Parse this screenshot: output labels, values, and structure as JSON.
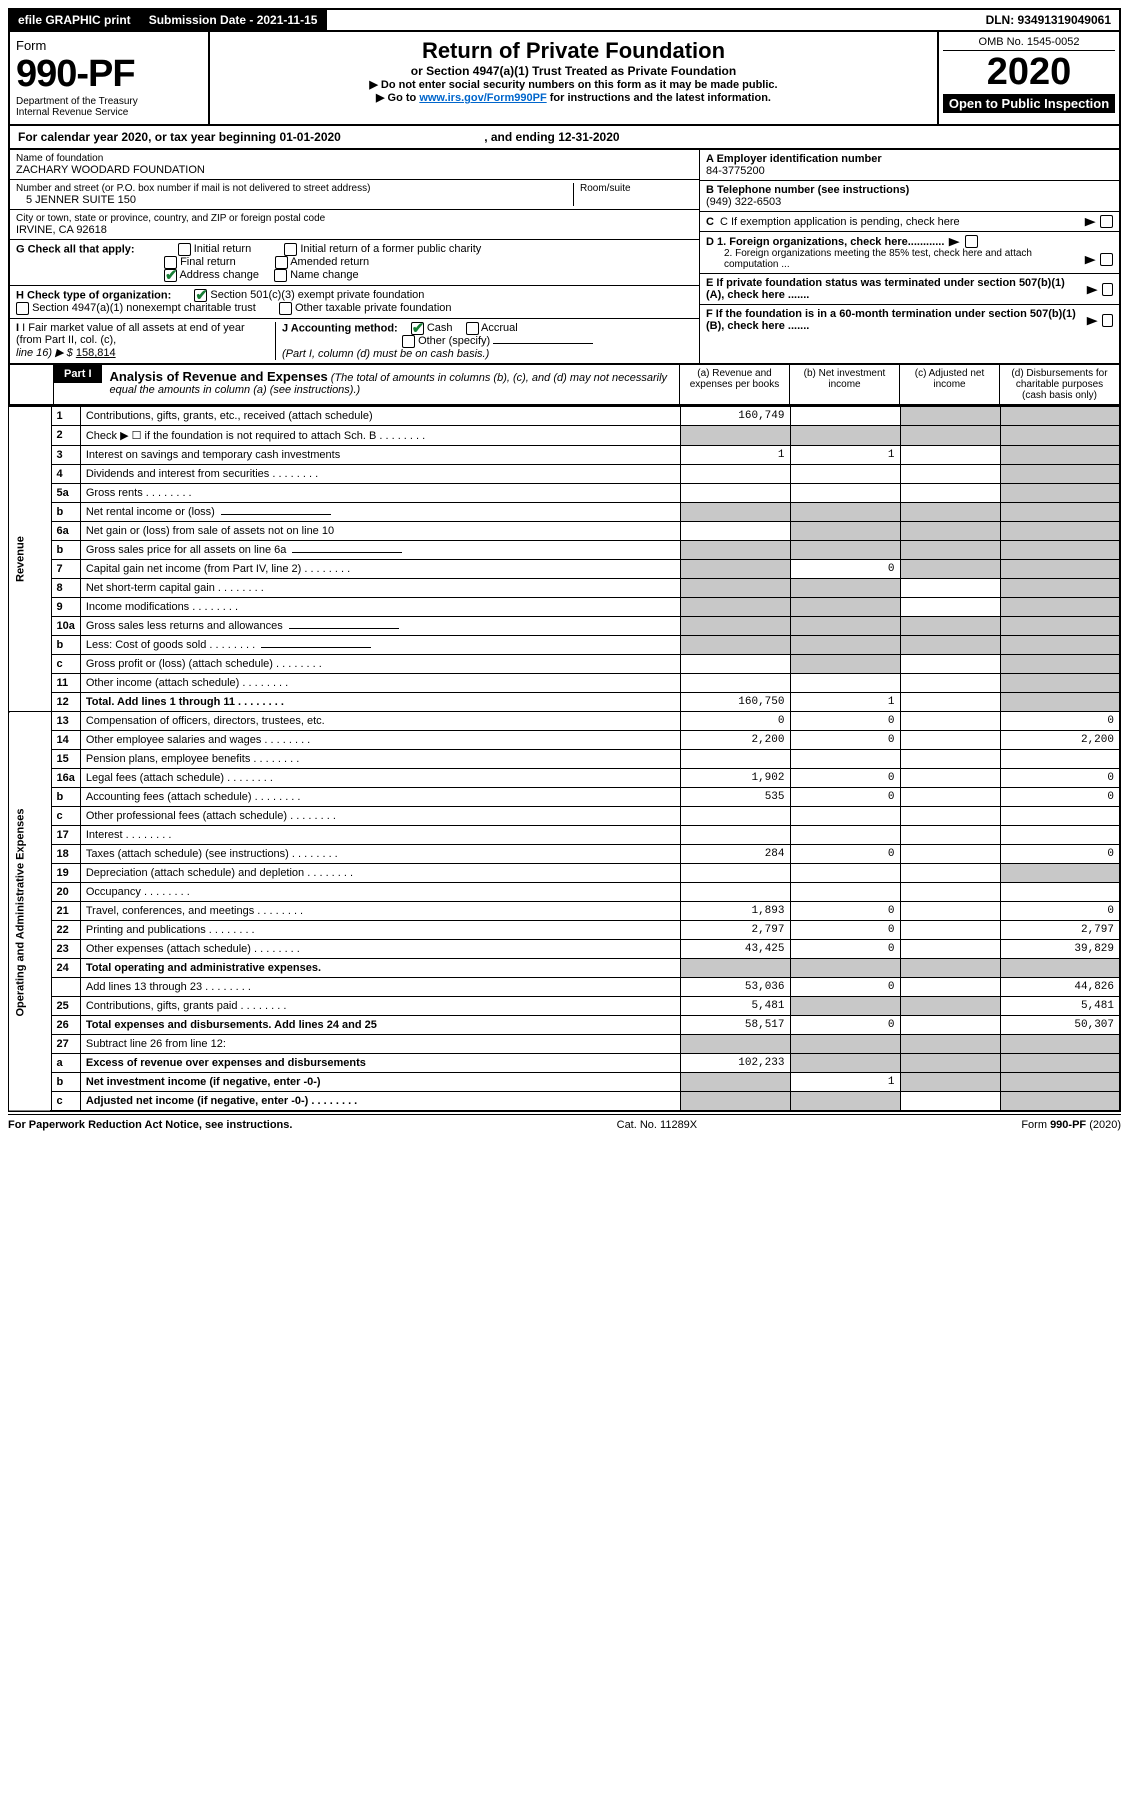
{
  "topbar": {
    "efile": "efile GRAPHIC print",
    "submission": "Submission Date - 2021-11-15",
    "dln": "DLN: 93491319049061"
  },
  "header": {
    "form_label": "Form",
    "form_no": "990-PF",
    "dept1": "Department of the Treasury",
    "dept2": "Internal Revenue Service",
    "title": "Return of Private Foundation",
    "subtitle": "or Section 4947(a)(1) Trust Treated as Private Foundation",
    "note1": "▶ Do not enter social security numbers on this form as it may be made public.",
    "note2_pre": "▶ Go to ",
    "note2_link": "www.irs.gov/Form990PF",
    "note2_post": " for instructions and the latest information.",
    "omb": "OMB No. 1545-0052",
    "year": "2020",
    "open": "Open to Public Inspection"
  },
  "calendar": {
    "text_pre": "For calendar year 2020, or tax year beginning ",
    "begin": "01-01-2020",
    "mid": " , and ending ",
    "end": "12-31-2020"
  },
  "entity": {
    "name_label": "Name of foundation",
    "name": "ZACHARY WOODARD FOUNDATION",
    "addr_label": "Number and street (or P.O. box number if mail is not delivered to street address)",
    "room_label": "Room/suite",
    "addr": "5 JENNER SUITE 150",
    "city_label": "City or town, state or province, country, and ZIP or foreign postal code",
    "city": "IRVINE, CA  92618",
    "a_label": "A Employer identification number",
    "a_value": "84-3775200",
    "b_label": "B Telephone number (see instructions)",
    "b_value": "(949) 322-6503",
    "c_label": "C If exemption application is pending, check here",
    "d1": "D 1. Foreign organizations, check here............",
    "d2": "2. Foreign organizations meeting the 85% test, check here and attach computation ...",
    "e_label": "E  If private foundation status was terminated under section 507(b)(1)(A), check here .......",
    "f_label": "F  If the foundation is in a 60-month termination under section 507(b)(1)(B), check here .......",
    "g_label": "G Check all that apply:",
    "g_opts": [
      "Initial return",
      "Initial return of a former public charity",
      "Final return",
      "Amended return",
      "Address change",
      "Name change"
    ],
    "h_label": "H Check type of organization:",
    "h_opts": [
      "Section 501(c)(3) exempt private foundation",
      "Section 4947(a)(1) nonexempt charitable trust",
      "Other taxable private foundation"
    ],
    "i_label": "I Fair market value of all assets at end of year (from Part II, col. (c),",
    "i_line": "line 16) ▶ $",
    "i_value": "158,814",
    "j_label": "J Accounting method:",
    "j_cash": "Cash",
    "j_accrual": "Accrual",
    "j_other": "Other (specify)",
    "j_note": "(Part I, column (d) must be on cash basis.)"
  },
  "part1": {
    "label": "Part I",
    "title": "Analysis of Revenue and Expenses",
    "title_note": "(The total of amounts in columns (b), (c), and (d) may not necessarily equal the amounts in column (a) (see instructions).)",
    "col_a": "(a)   Revenue and expenses per books",
    "col_b": "(b)   Net investment income",
    "col_c": "(c)   Adjusted net income",
    "col_d": "(d)  Disbursements for charitable purposes (cash basis only)"
  },
  "side": {
    "revenue": "Revenue",
    "expenses": "Operating and Administrative Expenses"
  },
  "rows": [
    {
      "n": "1",
      "t": "Contributions, gifts, grants, etc., received (attach schedule)",
      "a": "160,749",
      "b": "",
      "c": "grey",
      "d": "grey"
    },
    {
      "n": "2",
      "t": "Check ▶ ☐ if the foundation is not required to attach Sch. B",
      "dots": true,
      "a": "grey",
      "b": "grey",
      "c": "grey",
      "d": "grey"
    },
    {
      "n": "3",
      "t": "Interest on savings and temporary cash investments",
      "a": "1",
      "b": "1",
      "c": "",
      "d": "grey"
    },
    {
      "n": "4",
      "t": "Dividends and interest from securities",
      "dots": true,
      "a": "",
      "b": "",
      "c": "",
      "d": "grey"
    },
    {
      "n": "5a",
      "t": "Gross rents",
      "dots": true,
      "a": "",
      "b": "",
      "c": "",
      "d": "grey"
    },
    {
      "n": "b",
      "t": "Net rental income or (loss)",
      "input": true,
      "a": "grey",
      "b": "grey",
      "c": "grey",
      "d": "grey"
    },
    {
      "n": "6a",
      "t": "Net gain or (loss) from sale of assets not on line 10",
      "a": "",
      "b": "grey",
      "c": "grey",
      "d": "grey"
    },
    {
      "n": "b",
      "t": "Gross sales price for all assets on line 6a",
      "input": true,
      "a": "grey",
      "b": "grey",
      "c": "grey",
      "d": "grey"
    },
    {
      "n": "7",
      "t": "Capital gain net income (from Part IV, line 2)",
      "dots": true,
      "a": "grey",
      "b": "0",
      "c": "grey",
      "d": "grey"
    },
    {
      "n": "8",
      "t": "Net short-term capital gain",
      "dots": true,
      "a": "grey",
      "b": "grey",
      "c": "",
      "d": "grey"
    },
    {
      "n": "9",
      "t": "Income modifications",
      "dots": true,
      "a": "grey",
      "b": "grey",
      "c": "",
      "d": "grey"
    },
    {
      "n": "10a",
      "t": "Gross sales less returns and allowances",
      "input": true,
      "a": "grey",
      "b": "grey",
      "c": "grey",
      "d": "grey"
    },
    {
      "n": "b",
      "t": "Less: Cost of goods sold",
      "dots": true,
      "input": true,
      "a": "grey",
      "b": "grey",
      "c": "grey",
      "d": "grey"
    },
    {
      "n": "c",
      "t": "Gross profit or (loss) (attach schedule)",
      "dots": true,
      "a": "",
      "b": "grey",
      "c": "",
      "d": "grey"
    },
    {
      "n": "11",
      "t": "Other income (attach schedule)",
      "dots": true,
      "a": "",
      "b": "",
      "c": "",
      "d": "grey"
    },
    {
      "n": "12",
      "t": "Total. Add lines 1 through 11",
      "dots": true,
      "bold": true,
      "a": "160,750",
      "b": "1",
      "c": "",
      "d": "grey"
    },
    {
      "n": "13",
      "t": "Compensation of officers, directors, trustees, etc.",
      "a": "0",
      "b": "0",
      "c": "",
      "d": "0"
    },
    {
      "n": "14",
      "t": "Other employee salaries and wages",
      "dots": true,
      "a": "2,200",
      "b": "0",
      "c": "",
      "d": "2,200"
    },
    {
      "n": "15",
      "t": "Pension plans, employee benefits",
      "dots": true,
      "a": "",
      "b": "",
      "c": "",
      "d": ""
    },
    {
      "n": "16a",
      "t": "Legal fees (attach schedule)",
      "dots": true,
      "a": "1,902",
      "b": "0",
      "c": "",
      "d": "0"
    },
    {
      "n": "b",
      "t": "Accounting fees (attach schedule)",
      "dots": true,
      "a": "535",
      "b": "0",
      "c": "",
      "d": "0"
    },
    {
      "n": "c",
      "t": "Other professional fees (attach schedule)",
      "dots": true,
      "a": "",
      "b": "",
      "c": "",
      "d": ""
    },
    {
      "n": "17",
      "t": "Interest",
      "dots": true,
      "a": "",
      "b": "",
      "c": "",
      "d": ""
    },
    {
      "n": "18",
      "t": "Taxes (attach schedule) (see instructions)",
      "dots": true,
      "a": "284",
      "b": "0",
      "c": "",
      "d": "0"
    },
    {
      "n": "19",
      "t": "Depreciation (attach schedule) and depletion",
      "dots": true,
      "a": "",
      "b": "",
      "c": "",
      "d": "grey"
    },
    {
      "n": "20",
      "t": "Occupancy",
      "dots": true,
      "a": "",
      "b": "",
      "c": "",
      "d": ""
    },
    {
      "n": "21",
      "t": "Travel, conferences, and meetings",
      "dots": true,
      "a": "1,893",
      "b": "0",
      "c": "",
      "d": "0"
    },
    {
      "n": "22",
      "t": "Printing and publications",
      "dots": true,
      "a": "2,797",
      "b": "0",
      "c": "",
      "d": "2,797"
    },
    {
      "n": "23",
      "t": "Other expenses (attach schedule)",
      "dots": true,
      "a": "43,425",
      "b": "0",
      "c": "",
      "d": "39,829"
    },
    {
      "n": "24",
      "t": "Total operating and administrative expenses.",
      "bold": true,
      "a": "grey-empty",
      "b": "grey-empty",
      "c": "grey-empty",
      "d": "grey-empty"
    },
    {
      "n": "",
      "t": "Add lines 13 through 23",
      "dots": true,
      "a": "53,036",
      "b": "0",
      "c": "",
      "d": "44,826"
    },
    {
      "n": "25",
      "t": "Contributions, gifts, grants paid",
      "dots": true,
      "a": "5,481",
      "b": "grey",
      "c": "grey",
      "d": "5,481"
    },
    {
      "n": "26",
      "t": "Total expenses and disbursements. Add lines 24 and 25",
      "bold": true,
      "a": "58,517",
      "b": "0",
      "c": "",
      "d": "50,307"
    },
    {
      "n": "27",
      "t": "Subtract line 26 from line 12:",
      "a": "grey",
      "b": "grey",
      "c": "grey",
      "d": "grey"
    },
    {
      "n": "a",
      "t": "Excess of revenue over expenses and disbursements",
      "bold": true,
      "a": "102,233",
      "b": "grey",
      "c": "grey",
      "d": "grey"
    },
    {
      "n": "b",
      "t": "Net investment income (if negative, enter -0-)",
      "bold": true,
      "a": "grey",
      "b": "1",
      "c": "grey",
      "d": "grey"
    },
    {
      "n": "c",
      "t": "Adjusted net income (if negative, enter -0-)",
      "dots": true,
      "bold": true,
      "a": "grey",
      "b": "grey",
      "c": "",
      "d": "grey"
    }
  ],
  "footer": {
    "left": "For Paperwork Reduction Act Notice, see instructions.",
    "mid": "Cat. No. 11289X",
    "right": "Form 990-PF (2020)"
  }
}
